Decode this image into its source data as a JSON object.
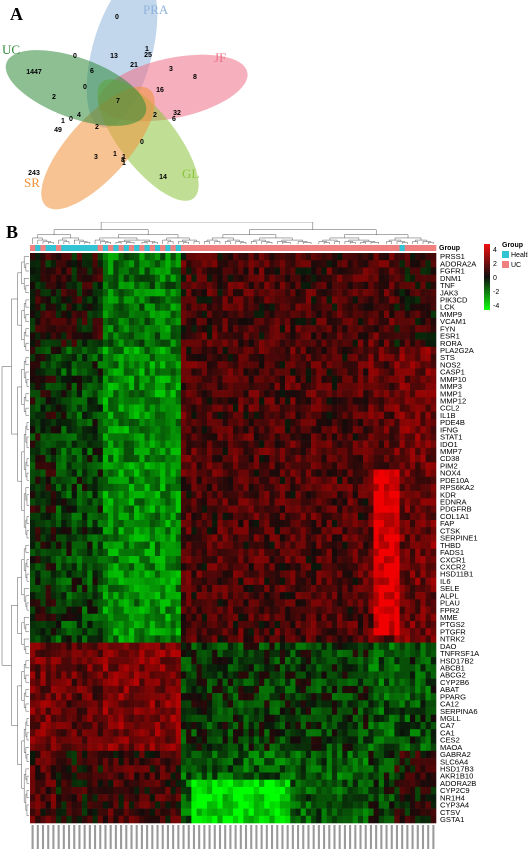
{
  "panels": {
    "a": "A",
    "b": "B"
  },
  "venn": {
    "sets": [
      {
        "name": "PRA",
        "color": "#8fb4dc"
      },
      {
        "name": "JF",
        "color": "#ee6f86"
      },
      {
        "name": "GL",
        "color": "#8cc43c"
      },
      {
        "name": "SR",
        "color": "#f0923a"
      },
      {
        "name": "UC",
        "color": "#2f8a3a"
      }
    ],
    "counts": [
      "0",
      "13",
      "21",
      "25",
      "1",
      "3",
      "8",
      "6",
      "0",
      "0",
      "1447",
      "2",
      "0",
      "7",
      "16",
      "2",
      "32",
      "6",
      "4",
      "1",
      "49",
      "2",
      "1",
      "3",
      "1",
      "0",
      "1",
      "8",
      "243",
      "14"
    ]
  },
  "heatmap": {
    "group_label": "Group",
    "legend_title": "Group",
    "groups": [
      {
        "name": "Health",
        "color": "#33c4d4"
      },
      {
        "name": "UC",
        "color": "#f08080"
      }
    ],
    "scale_ticks": [
      "4",
      "2",
      "0",
      "-2",
      "-4"
    ],
    "genes": [
      "PRSS1",
      "ADORA2A",
      "FGFR1",
      "DNM1",
      "TNF",
      "JAK3",
      "PIK3CD",
      "LCK",
      "MMP9",
      "VCAM1",
      "FYN",
      "ESR1",
      "RORA",
      "PLA2G2A",
      "STS",
      "NOS2",
      "CASP1",
      "MMP10",
      "MMP3",
      "MMP1",
      "MMP12",
      "CCL2",
      "IL1B",
      "PDE4B",
      "IFNG",
      "STAT1",
      "IDO1",
      "MMP7",
      "CD38",
      "PIM2",
      "NOX4",
      "PDE10A",
      "RPS6KA2",
      "KDR",
      "EDNRA",
      "PDGFRB",
      "COL1A1",
      "FAP",
      "CTSK",
      "SERPINE1",
      "THBD",
      "FADS1",
      "CXCR1",
      "CXCR2",
      "HSD11B1",
      "IL6",
      "SELE",
      "ALPL",
      "PLAU",
      "FPR2",
      "MME",
      "PTGS2",
      "PTGFR",
      "NTRK2",
      "DAO",
      "TNFRSF1A",
      "HSD17B2",
      "ABCB1",
      "ABCG2",
      "CYP2B6",
      "ABAT",
      "PPARG",
      "CA12",
      "SERPINA6",
      "MGLL",
      "CA7",
      "CA1",
      "CES2",
      "MAOA",
      "GABRA2",
      "SLC6A4",
      "HSD17B3",
      "AKR1B10",
      "ADORA2B",
      "CYP2C9",
      "NR1H4",
      "CYP3A4",
      "CTSV",
      "GSTA1"
    ]
  }
}
